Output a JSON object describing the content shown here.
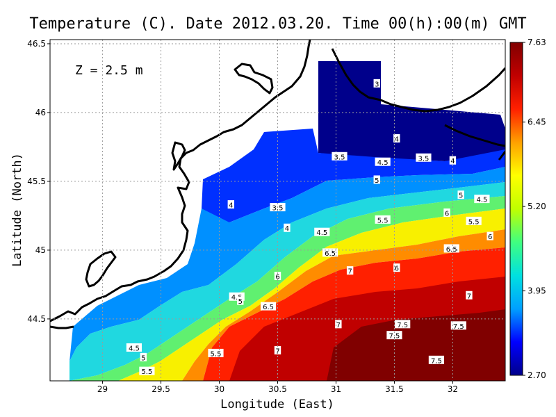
{
  "chart_data": {
    "type": "heatmap",
    "title": "Temperature (C). Date 2012.03.20. Time 00(h):00(m) GMT",
    "annotation": "Z = 2.5 m",
    "xlabel": "Longitude (East)",
    "ylabel": "Latitude (North)",
    "x_ticks": [
      "29",
      "29.5",
      "30",
      "30.5",
      "31",
      "31.5",
      "32"
    ],
    "y_ticks": [
      "44.5",
      "45",
      "45.5",
      "46",
      "46.5"
    ],
    "xlim": [
      28.55,
      32.45
    ],
    "ylim": [
      44.05,
      46.53
    ],
    "grid": true,
    "colorbar": {
      "ticks": [
        "2.70",
        "3.95",
        "5.20",
        "6.45",
        "7.63"
      ],
      "min": 2.7,
      "max": 7.63,
      "colors": [
        "#00008b",
        "#0000ff",
        "#00a0ff",
        "#00e0e0",
        "#40ff80",
        "#c0ff00",
        "#ffff00",
        "#ffa000",
        "#ff2000",
        "#c00000",
        "#800000"
      ]
    },
    "contour_labels": [
      {
        "text": "3",
        "lon": 31.35,
        "lat": 46.21
      },
      {
        "text": "4",
        "lon": 31.52,
        "lat": 45.81
      },
      {
        "text": "3.5",
        "lon": 31.03,
        "lat": 45.68
      },
      {
        "text": "4.5",
        "lon": 31.4,
        "lat": 45.64
      },
      {
        "text": "3.5",
        "lon": 31.75,
        "lat": 45.67
      },
      {
        "text": "4",
        "lon": 32.0,
        "lat": 45.65
      },
      {
        "text": "5",
        "lon": 31.35,
        "lat": 45.51
      },
      {
        "text": "5",
        "lon": 32.07,
        "lat": 45.4
      },
      {
        "text": "4.5",
        "lon": 32.25,
        "lat": 45.37
      },
      {
        "text": "4",
        "lon": 30.1,
        "lat": 45.33
      },
      {
        "text": "3.5",
        "lon": 30.5,
        "lat": 45.31
      },
      {
        "text": "6",
        "lon": 31.95,
        "lat": 45.27
      },
      {
        "text": "5.5",
        "lon": 31.4,
        "lat": 45.22
      },
      {
        "text": "5.5",
        "lon": 32.18,
        "lat": 45.21
      },
      {
        "text": "4",
        "lon": 30.58,
        "lat": 45.16
      },
      {
        "text": "4.5",
        "lon": 30.88,
        "lat": 45.13
      },
      {
        "text": "6",
        "lon": 32.32,
        "lat": 45.1
      },
      {
        "text": "6.5",
        "lon": 31.99,
        "lat": 45.01
      },
      {
        "text": "6.5",
        "lon": 30.95,
        "lat": 44.98
      },
      {
        "text": "6",
        "lon": 31.52,
        "lat": 44.87
      },
      {
        "text": "7",
        "lon": 31.12,
        "lat": 44.85
      },
      {
        "text": "6",
        "lon": 30.5,
        "lat": 44.81
      },
      {
        "text": "7",
        "lon": 32.14,
        "lat": 44.67
      },
      {
        "text": "4.5",
        "lon": 30.15,
        "lat": 44.66
      },
      {
        "text": "5",
        "lon": 30.18,
        "lat": 44.63
      },
      {
        "text": "6.5",
        "lon": 30.42,
        "lat": 44.59
      },
      {
        "text": "7",
        "lon": 31.02,
        "lat": 44.46
      },
      {
        "text": "7.5",
        "lon": 31.57,
        "lat": 44.46
      },
      {
        "text": "7.5",
        "lon": 32.05,
        "lat": 44.45
      },
      {
        "text": "7.5",
        "lon": 31.5,
        "lat": 44.38
      },
      {
        "text": "4.5",
        "lon": 29.27,
        "lat": 44.29
      },
      {
        "text": "7",
        "lon": 30.5,
        "lat": 44.27
      },
      {
        "text": "5.5",
        "lon": 29.97,
        "lat": 44.25
      },
      {
        "text": "5",
        "lon": 29.35,
        "lat": 44.22
      },
      {
        "text": "7.5",
        "lon": 31.86,
        "lat": 44.2
      },
      {
        "text": "5.5",
        "lon": 29.38,
        "lat": 44.12
      }
    ]
  }
}
